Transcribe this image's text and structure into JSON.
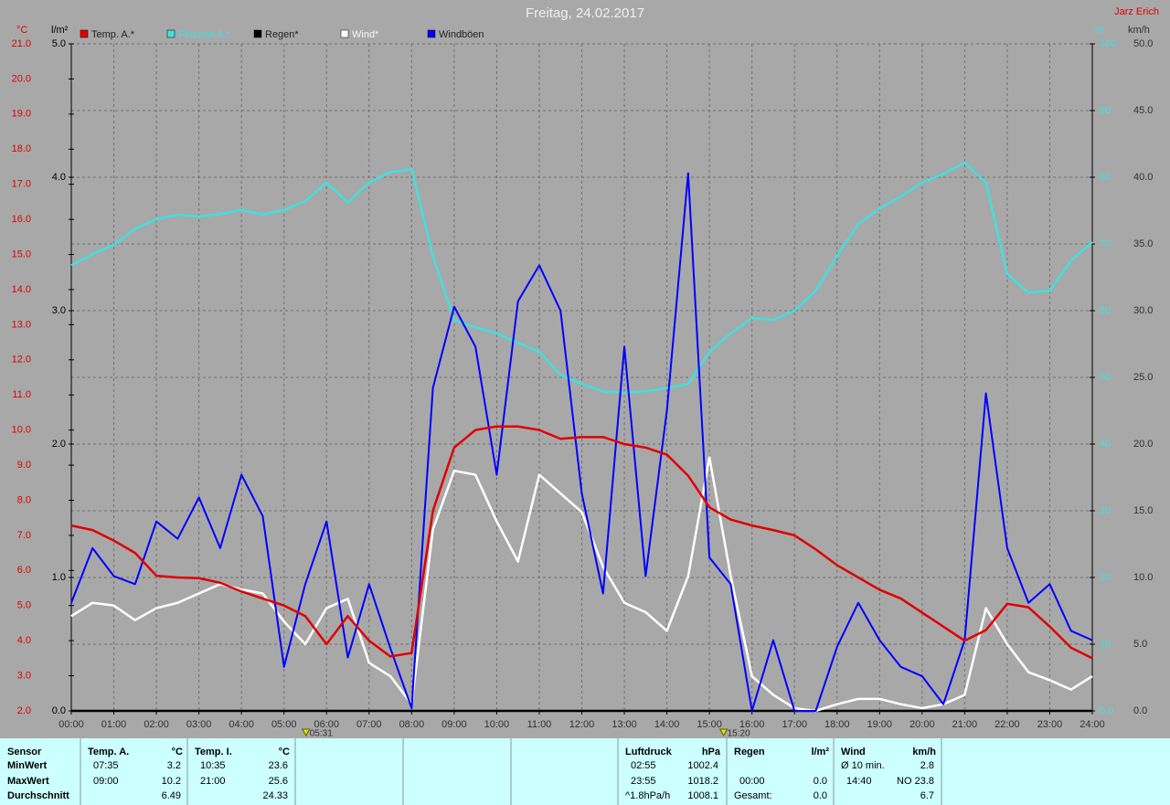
{
  "chart_data": {
    "type": "line",
    "title": "Freitag, 24.02.2017",
    "author": "Jarz Erich",
    "xlim": [
      0,
      24
    ],
    "xticks": [
      {
        "value": 0,
        "label": "00:00"
      },
      {
        "value": 1,
        "label": "01:00"
      },
      {
        "value": 2,
        "label": "02:00"
      },
      {
        "value": 3,
        "label": "03:00"
      },
      {
        "value": 4,
        "label": "04:00"
      },
      {
        "value": 5,
        "label": "05:00"
      },
      {
        "value": 6,
        "label": "06:00"
      },
      {
        "value": 7,
        "label": "07:00"
      },
      {
        "value": 8,
        "label": "08:00"
      },
      {
        "value": 9,
        "label": "09:00"
      },
      {
        "value": 10,
        "label": "10:00"
      },
      {
        "value": 11,
        "label": "11:00"
      },
      {
        "value": 12,
        "label": "12:00"
      },
      {
        "value": 13,
        "label": "13:00"
      },
      {
        "value": 14,
        "label": "14:00"
      },
      {
        "value": 15,
        "label": "15:00"
      },
      {
        "value": 16,
        "label": "16:00"
      },
      {
        "value": 17,
        "label": "17:00"
      },
      {
        "value": 18,
        "label": "18:00"
      },
      {
        "value": 19,
        "label": "19:00"
      },
      {
        "value": 20,
        "label": "20:00"
      },
      {
        "value": 21,
        "label": "21:00"
      },
      {
        "value": 22,
        "label": "22:00"
      },
      {
        "value": 23,
        "label": "23:00"
      },
      {
        "value": 24,
        "label": "24:00"
      }
    ],
    "grid": true,
    "axes": [
      {
        "label": "°C",
        "color": "#e00000",
        "lim": [
          2,
          21
        ],
        "ticks": [
          {
            "value": 2,
            "label": "2.0"
          },
          {
            "value": 3,
            "label": "3.0"
          },
          {
            "value": 4,
            "label": "4.0"
          },
          {
            "value": 5,
            "label": "5.0"
          },
          {
            "value": 6,
            "label": "6.0"
          },
          {
            "value": 7,
            "label": "7.0"
          },
          {
            "value": 8,
            "label": "8.0"
          },
          {
            "value": 9,
            "label": "9.0"
          },
          {
            "value": 10,
            "label": "10.0"
          },
          {
            "value": 11,
            "label": "11.0"
          },
          {
            "value": 12,
            "label": "12.0"
          },
          {
            "value": 13,
            "label": "13.0"
          },
          {
            "value": 14,
            "label": "14.0"
          },
          {
            "value": 15,
            "label": "15.0"
          },
          {
            "value": 16,
            "label": "16.0"
          },
          {
            "value": 17,
            "label": "17.0"
          },
          {
            "value": 18,
            "label": "18.0"
          },
          {
            "value": 19,
            "label": "19.0"
          },
          {
            "value": 20,
            "label": "20.0"
          },
          {
            "value": 21,
            "label": "21.0"
          }
        ]
      },
      {
        "label": "l/m²",
        "color": "#000000",
        "lim": [
          0,
          5
        ],
        "ticks": [
          {
            "value": 0,
            "label": "0.0"
          },
          {
            "value": 1,
            "label": "1.0"
          },
          {
            "value": 2,
            "label": "2.0"
          },
          {
            "value": 3,
            "label": "3.0"
          },
          {
            "value": 4,
            "label": "4.0"
          },
          {
            "value": 5,
            "label": "5.0"
          }
        ]
      },
      {
        "label": "%",
        "color": "#40e0e0",
        "lim": [
          0,
          100
        ],
        "ticks": [
          {
            "value": 0,
            "label": "0.0"
          },
          10,
          20,
          30,
          40,
          50,
          60,
          70,
          80,
          90,
          100
        ]
      },
      {
        "label": "km/h",
        "color": "#303030",
        "lim": [
          0,
          50
        ],
        "ticks": [
          {
            "value": 0,
            "label": "0.0"
          },
          {
            "value": 5,
            "label": "5.0"
          },
          {
            "value": 10,
            "label": "10.0"
          },
          {
            "value": 15,
            "label": "15.0"
          },
          {
            "value": 20,
            "label": "20.0"
          },
          {
            "value": 25,
            "label": "25.0"
          },
          {
            "value": 30,
            "label": "30.0"
          },
          {
            "value": 35,
            "label": "35.0"
          },
          {
            "value": 40,
            "label": "40.0"
          },
          {
            "value": 45,
            "label": "45.0"
          },
          {
            "value": 50,
            "label": "50.0"
          }
        ]
      }
    ],
    "x": [
      0,
      0.5,
      1,
      1.5,
      2,
      2.5,
      3,
      3.5,
      4,
      4.5,
      5,
      5.5,
      6,
      6.5,
      7,
      7.5,
      8,
      8.5,
      9,
      9.5,
      10,
      10.5,
      11,
      11.5,
      12,
      12.5,
      13,
      13.5,
      14,
      14.5,
      15,
      15.5,
      16,
      16.5,
      17,
      17.5,
      18,
      18.5,
      19,
      19.5,
      20,
      20.5,
      21,
      21.5,
      22,
      22.5,
      23,
      23.5,
      24
    ],
    "series": [
      {
        "name": "Temp. A.*",
        "color": "#e00000",
        "axis": 0,
        "values": [
          7.28,
          7.15,
          6.85,
          6.5,
          5.85,
          5.8,
          5.78,
          5.65,
          5.4,
          5.2,
          5.0,
          4.7,
          3.9,
          4.7,
          4.0,
          3.55,
          3.65,
          7.7,
          9.5,
          10.0,
          10.1,
          10.1,
          10.0,
          9.75,
          9.8,
          9.8,
          9.6,
          9.5,
          9.3,
          8.7,
          7.8,
          7.45,
          7.28,
          7.15,
          7.0,
          6.6,
          6.15,
          5.8,
          5.45,
          5.2,
          4.8,
          4.4,
          4.0,
          4.3,
          5.05,
          4.95,
          4.4,
          3.8,
          3.5
        ]
      },
      {
        "name": "Feuchte A.*",
        "color": "#40e0e0",
        "axis": 2,
        "values": [
          66.8,
          68.5,
          69.9,
          72.3,
          73.7,
          74.4,
          74.1,
          74.5,
          75.1,
          74.4,
          75.1,
          76.4,
          79.2,
          76.2,
          79.2,
          80.8,
          81.2,
          68.2,
          58.6,
          57.5,
          56.6,
          55.2,
          53.8,
          50.4,
          49.0,
          47.9,
          47.7,
          47.9,
          48.4,
          49.0,
          53.8,
          56.6,
          58.9,
          58.6,
          60.0,
          63.0,
          68.2,
          73.0,
          75.3,
          77.1,
          79.2,
          80.5,
          82.2,
          79.2,
          65.5,
          62.7,
          63.0,
          67.5,
          70.3
        ]
      },
      {
        "name": "Regen*",
        "color": "#000000",
        "axis": 1,
        "values": [
          0,
          0,
          0,
          0,
          0,
          0,
          0,
          0,
          0,
          0,
          0,
          0,
          0,
          0,
          0,
          0,
          0,
          0,
          0,
          0,
          0,
          0,
          0,
          0,
          0,
          0,
          0,
          0,
          0,
          0,
          0,
          0,
          0,
          0,
          0,
          0,
          0,
          0,
          0,
          0,
          0,
          0,
          0,
          0,
          0,
          0,
          0,
          0,
          0
        ]
      },
      {
        "name": "Wind*",
        "color": "#ffffff",
        "axis": 3,
        "values": [
          7.1,
          8.1,
          7.9,
          6.8,
          7.7,
          8.1,
          8.8,
          9.5,
          9.1,
          8.8,
          6.7,
          5.0,
          7.7,
          8.4,
          3.6,
          2.6,
          0.5,
          13.6,
          18.0,
          17.7,
          14.2,
          11.2,
          17.7,
          16.3,
          14.9,
          10.8,
          8.1,
          7.4,
          6.0,
          10.1,
          19.0,
          10.1,
          2.6,
          1.2,
          0.2,
          0,
          0.5,
          0.9,
          0.9,
          0.5,
          0.2,
          0.5,
          1.2,
          7.7,
          5.0,
          2.9,
          2.3,
          1.6,
          2.6
        ]
      },
      {
        "name": "Windböen",
        "color": "#0000ff",
        "axis": 3,
        "values": [
          8.1,
          12.2,
          10.1,
          9.5,
          14.2,
          12.9,
          16.0,
          12.2,
          17.7,
          14.6,
          3.3,
          9.5,
          14.2,
          4.0,
          9.5,
          4.7,
          0.2,
          24.2,
          30.3,
          27.3,
          17.7,
          30.7,
          33.4,
          30.0,
          16.3,
          8.8,
          27.3,
          10.1,
          22.5,
          40.3,
          11.5,
          9.5,
          0,
          5.3,
          0,
          0,
          4.8,
          8.1,
          5.3,
          3.3,
          2.6,
          0.5,
          5.3,
          23.8,
          12.2,
          8.1,
          9.5,
          6.0,
          5.3
        ]
      }
    ],
    "annotations": [
      {
        "x": 5.5167,
        "label": "05:31"
      },
      {
        "x": 15.3333,
        "label": "15:20"
      }
    ]
  },
  "table": {
    "row_labels": [
      "Sensor",
      "MinWert",
      "MaxWert",
      "Durchschnitt"
    ],
    "columns": [
      {
        "title": "Temp. A.",
        "unit": "°C",
        "rows": [
          [
            "07:35",
            "3.2"
          ],
          [
            "09:00",
            "10.2"
          ],
          [
            null,
            "6.49"
          ]
        ]
      },
      {
        "title": "Temp. I.",
        "unit": "°C",
        "rows": [
          [
            "10:35",
            "23.6"
          ],
          [
            "21:00",
            "25.6"
          ],
          [
            null,
            "24.33"
          ]
        ]
      },
      {
        "title": "Luftdruck",
        "unit": "hPa",
        "rows": [
          [
            "02:55",
            "1002.4"
          ],
          [
            "23:55",
            "1018.2"
          ],
          [
            "^1.8hPa/h",
            "1008.1"
          ]
        ]
      },
      {
        "title": "Regen",
        "unit": "l/m²",
        "rows": [
          [
            null,
            null
          ],
          [
            "00:00",
            "0.0"
          ],
          [
            "Gesamt:",
            "0.0"
          ]
        ]
      },
      {
        "title": "Wind",
        "unit": "km/h",
        "rows": [
          [
            "Ø 10 min.",
            "2.8"
          ],
          [
            "14:40",
            "NO 23.8"
          ],
          [
            null,
            "6.7"
          ]
        ]
      }
    ]
  }
}
